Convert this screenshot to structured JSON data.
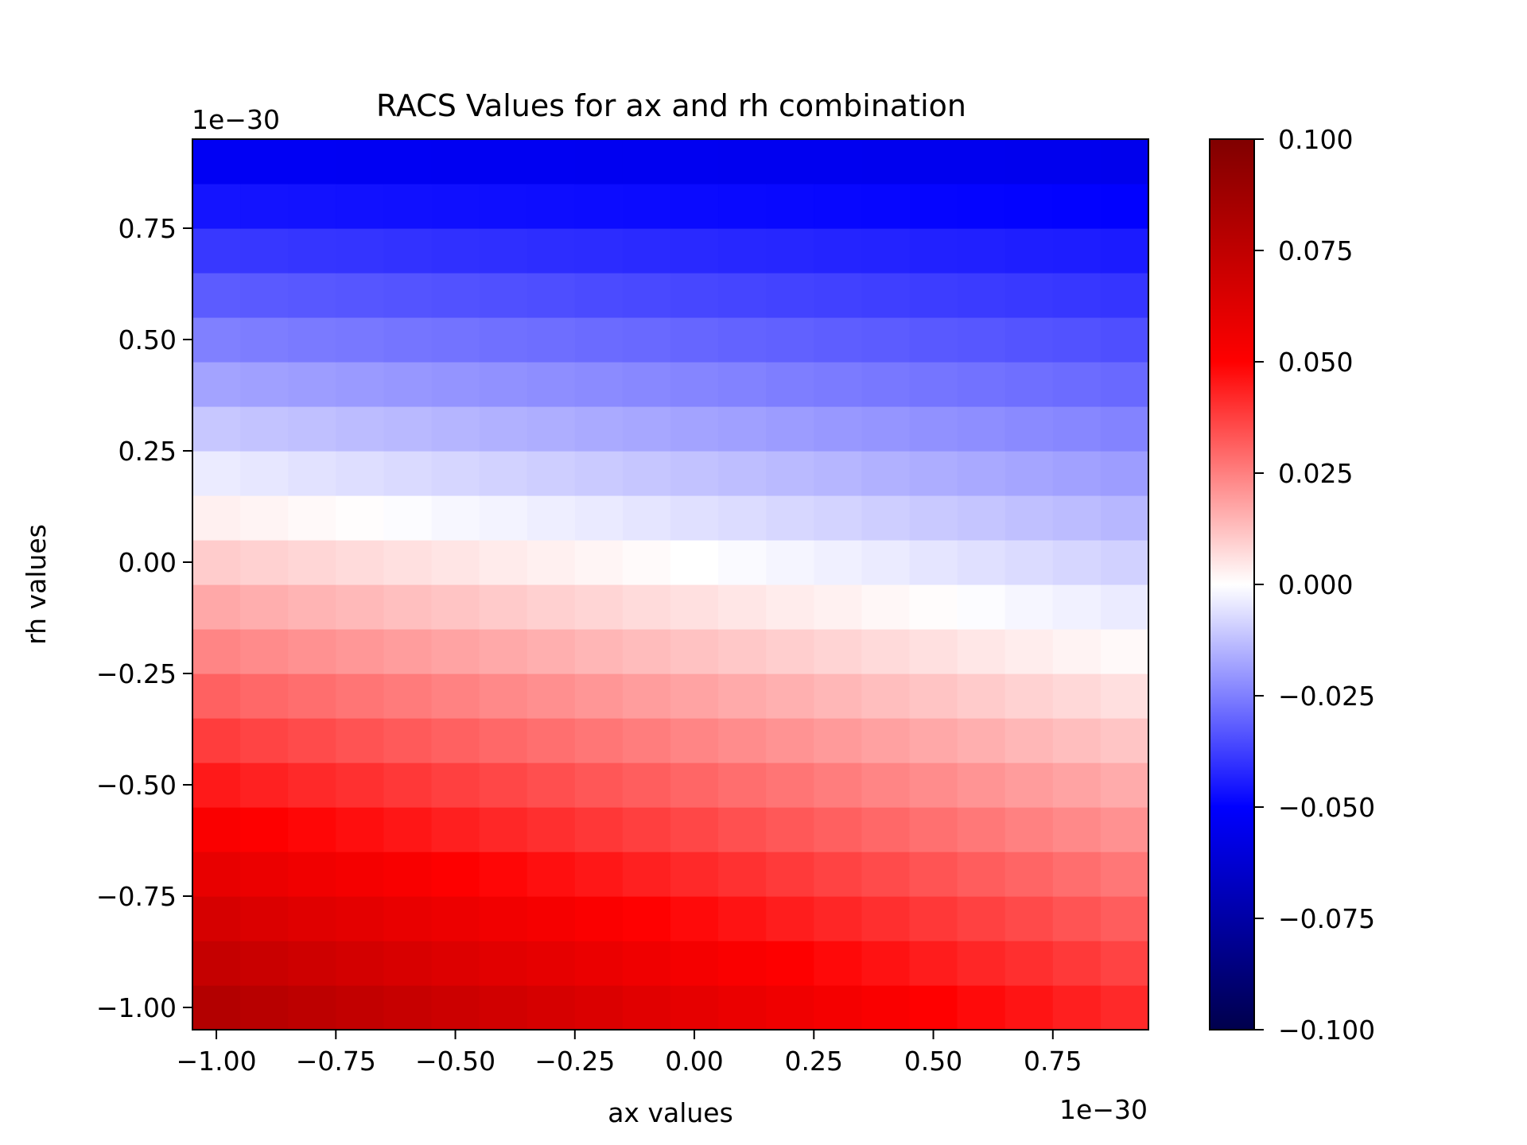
{
  "chart_data": {
    "type": "heatmap",
    "title": "RACS Values for ax and rh combination",
    "xlabel": "ax values",
    "ylabel": "rh values",
    "x_offset_text": "1e−30",
    "y_offset_text": "1e−30",
    "x_scale": 1e-30,
    "y_scale": 1e-30,
    "x_range": [
      -1.05,
      0.95
    ],
    "y_range": [
      -1.05,
      0.95
    ],
    "x_cell_centers": [
      -1.0,
      -0.9,
      -0.8,
      -0.7,
      -0.6,
      -0.5,
      -0.4,
      -0.3,
      -0.2,
      -0.1,
      0.0,
      0.1,
      0.2,
      0.3,
      0.4,
      0.5,
      0.6,
      0.7,
      0.8,
      0.9
    ],
    "y_cell_centers": [
      -1.0,
      -0.9,
      -0.8,
      -0.7,
      -0.6,
      -0.5,
      -0.4,
      -0.3,
      -0.2,
      -0.1,
      0.0,
      0.1,
      0.2,
      0.3,
      0.4,
      0.5,
      0.6,
      0.7,
      0.8,
      0.9
    ],
    "x_ticks": [
      {
        "value": -1.0,
        "label": "−1.00"
      },
      {
        "value": -0.75,
        "label": "−0.75"
      },
      {
        "value": -0.5,
        "label": "−0.50"
      },
      {
        "value": -0.25,
        "label": "−0.25"
      },
      {
        "value": 0.0,
        "label": "0.00"
      },
      {
        "value": 0.25,
        "label": "0.25"
      },
      {
        "value": 0.5,
        "label": "0.50"
      },
      {
        "value": 0.75,
        "label": "0.75"
      }
    ],
    "y_ticks": [
      {
        "value": -1.0,
        "label": "−1.00"
      },
      {
        "value": -0.75,
        "label": "−0.75"
      },
      {
        "value": -0.5,
        "label": "−0.50"
      },
      {
        "value": -0.25,
        "label": "−0.25"
      },
      {
        "value": 0.0,
        "label": "0.00"
      },
      {
        "value": 0.25,
        "label": "0.25"
      },
      {
        "value": 0.5,
        "label": "0.50"
      },
      {
        "value": 0.75,
        "label": "0.75"
      }
    ],
    "colormap": "seismic",
    "colormap_stops": [
      "#00004c",
      "#0000ff",
      "#ffffff",
      "#ff0000",
      "#800000"
    ],
    "vmin": -0.1,
    "vmax": 0.1,
    "colorbar_ticks": [
      {
        "value": 0.1,
        "label": "0.100"
      },
      {
        "value": 0.075,
        "label": "0.075"
      },
      {
        "value": 0.05,
        "label": "0.050"
      },
      {
        "value": 0.025,
        "label": "0.025"
      },
      {
        "value": 0.0,
        "label": "0.000"
      },
      {
        "value": -0.025,
        "label": "−0.025"
      },
      {
        "value": -0.05,
        "label": "−0.050"
      },
      {
        "value": -0.075,
        "label": "−0.075"
      },
      {
        "value": -0.1,
        "label": "−0.100"
      }
    ],
    "value_model": {
      "description": "cell value = rh_coef * rh + ax_coef * ax + ax_rh_coef * ax * rh (rh, ax in axis units)",
      "rh_coef": -0.06,
      "ax_coef": -0.01,
      "ax_rh_coef": 0.01
    },
    "grid": false,
    "legend": "colorbar-right"
  }
}
